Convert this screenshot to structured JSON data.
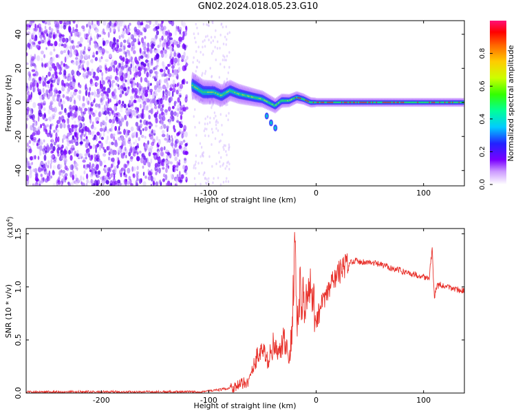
{
  "page_title": "GN02.2024.018.05.23.G10",
  "colorbar": {
    "label": "Normalized spectral amplitude",
    "ticks": [
      "0.0",
      "0.2",
      "0.4",
      "0.6",
      "0.8"
    ],
    "range": [
      0,
      1
    ]
  },
  "chart_data": [
    {
      "type": "heatmap",
      "title": "",
      "xlabel": "Height of straight line (km)",
      "ylabel": "Frequency (Hz)",
      "xlim": [
        -270,
        138
      ],
      "ylim": [
        -49,
        48
      ],
      "x_ticks": [
        "-200",
        "-100",
        "0",
        "100"
      ],
      "y_ticks": [
        "-40",
        "-20",
        "0",
        "20",
        "40"
      ],
      "features": {
        "noise_region_x": [
          -270,
          -120
        ],
        "sparse_noise_x": [
          -115,
          -80
        ],
        "main_ridge": [
          {
            "x": -115,
            "y": 10
          },
          {
            "x": -110,
            "y": 8
          },
          {
            "x": -105,
            "y": 6
          },
          {
            "x": -95,
            "y": 6
          },
          {
            "x": -88,
            "y": 4
          },
          {
            "x": -80,
            "y": 7
          },
          {
            "x": -72,
            "y": 5
          },
          {
            "x": -65,
            "y": 4
          },
          {
            "x": -58,
            "y": 3
          },
          {
            "x": -50,
            "y": 2
          },
          {
            "x": -44,
            "y": 0
          },
          {
            "x": -38,
            "y": -2
          },
          {
            "x": -32,
            "y": 1
          },
          {
            "x": -25,
            "y": 1
          },
          {
            "x": -18,
            "y": 3
          },
          {
            "x": -12,
            "y": 2
          },
          {
            "x": -5,
            "y": 0
          },
          {
            "x": 0,
            "y": 0
          },
          {
            "x": 50,
            "y": 0
          },
          {
            "x": 100,
            "y": 0
          },
          {
            "x": 138,
            "y": 0
          }
        ],
        "side_branch": [
          {
            "x": -46,
            "y": -8
          },
          {
            "x": -42,
            "y": -12
          },
          {
            "x": -38,
            "y": -15
          }
        ]
      }
    },
    {
      "type": "line",
      "title": "",
      "xlabel": "Height of straight line (km)",
      "ylabel": "SNR (10 * v/v)",
      "y_multiplier": "(x10",
      "y_multiplier_exp": "4",
      "y_multiplier_close": ")",
      "xlim": [
        -270,
        138
      ],
      "ylim": [
        0,
        1.55
      ],
      "x_ticks": [
        "-200",
        "-100",
        "0",
        "100"
      ],
      "y_ticks": [
        "0.0",
        "0.5",
        "1.0",
        "1.5"
      ],
      "color": "#e8302a",
      "series": [
        {
          "x": [
            -270,
            -250,
            -200,
            -150,
            -110,
            -100,
            -90,
            -80,
            -70,
            -62,
            -60,
            -55,
            -50,
            -45,
            -40,
            -35,
            -30,
            -25,
            -22,
            -20,
            -18,
            -15,
            -10,
            -5,
            0,
            5,
            10,
            15,
            20,
            25,
            30,
            35,
            40,
            50,
            60,
            70,
            80,
            90,
            100,
            105,
            108,
            110,
            112,
            115,
            120,
            130,
            138
          ],
          "y": [
            0.01,
            0.01,
            0.01,
            0.01,
            0.01,
            0.02,
            0.03,
            0.05,
            0.08,
            0.12,
            0.2,
            0.35,
            0.4,
            0.3,
            0.45,
            0.35,
            0.5,
            0.3,
            0.7,
            1.55,
            0.6,
            0.95,
            0.85,
            0.95,
            0.7,
            0.82,
            0.92,
            1.05,
            1.12,
            1.18,
            1.22,
            1.25,
            1.24,
            1.23,
            1.21,
            1.18,
            1.15,
            1.12,
            1.1,
            1.07,
            1.35,
            0.9,
            1.0,
            1.02,
            1.0,
            0.98,
            0.96
          ]
        }
      ]
    }
  ]
}
